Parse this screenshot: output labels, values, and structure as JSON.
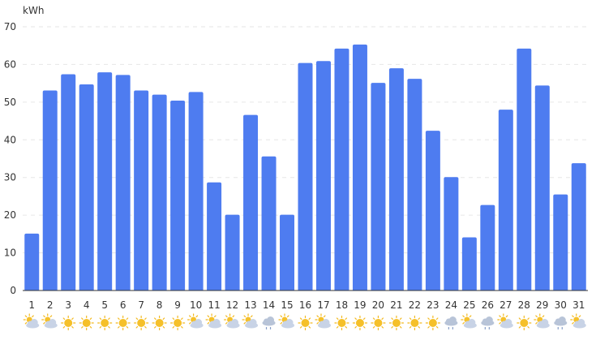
{
  "chart_data": {
    "type": "bar",
    "ylabel": "kWh",
    "ylim": [
      0,
      70
    ],
    "yticks": [
      0,
      10,
      20,
      30,
      40,
      50,
      60,
      70
    ],
    "grid": true,
    "bar_color": "#4e7cf0",
    "categories": [
      "1",
      "2",
      "3",
      "4",
      "5",
      "6",
      "7",
      "8",
      "9",
      "10",
      "11",
      "12",
      "13",
      "14",
      "15",
      "16",
      "17",
      "18",
      "19",
      "20",
      "21",
      "22",
      "23",
      "24",
      "25",
      "26",
      "27",
      "28",
      "29",
      "30",
      "31"
    ],
    "values": [
      15.1,
      53.1,
      57.4,
      54.7,
      57.9,
      57.2,
      53.1,
      52.0,
      50.4,
      52.7,
      28.7,
      20.1,
      46.6,
      35.6,
      20.1,
      60.4,
      60.9,
      64.2,
      65.3,
      55.1,
      59.0,
      56.2,
      42.4,
      30.1,
      14.1,
      22.7,
      48.0,
      64.2,
      54.4,
      25.5,
      33.8
    ],
    "weather_icons": [
      "partly-cloudy-icon",
      "partly-cloudy-icon",
      "sunny-icon",
      "sunny-icon",
      "sunny-icon",
      "sunny-icon",
      "sunny-icon",
      "sunny-icon",
      "sunny-icon",
      "partly-cloudy-icon",
      "partly-cloudy-icon",
      "partly-cloudy-icon",
      "partly-cloudy-icon",
      "rain-icon",
      "partly-cloudy-icon",
      "sunny-icon",
      "partly-cloudy-icon",
      "sunny-icon",
      "sunny-icon",
      "sunny-icon",
      "sunny-icon",
      "sunny-icon",
      "sunny-icon",
      "rain-icon",
      "partly-cloudy-icon",
      "rain-icon",
      "partly-cloudy-icon",
      "sunny-icon",
      "partly-cloudy-icon",
      "rain-icon",
      "partly-cloudy-icon"
    ]
  }
}
